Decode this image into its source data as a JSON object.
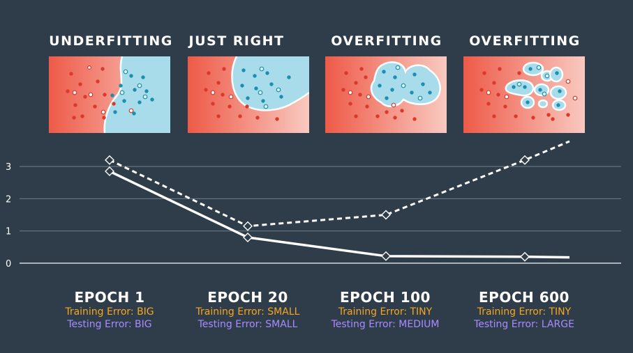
{
  "panels": [
    {
      "title": "UNDERFITTING",
      "scene": "underfit"
    },
    {
      "title": "JUST RIGHT",
      "scene": "right"
    },
    {
      "title": "OVERFITTING",
      "scene": "over1"
    },
    {
      "title": "OVERFITTING",
      "scene": "over2"
    }
  ],
  "epochs": [
    {
      "title": "EPOCH 1",
      "training_label": "Training Error: BIG",
      "testing_label": "Testing Error: BIG"
    },
    {
      "title": "EPOCH 20",
      "training_label": "Training Error: SMALL",
      "testing_label": "Testing Error: SMALL"
    },
    {
      "title": "EPOCH 100",
      "training_label": "Training Error: TINY",
      "testing_label": "Testing Error: MEDIUM"
    },
    {
      "title": "EPOCH 600",
      "training_label": "Training Error: TINY",
      "testing_label": "Testing Error: LARGE"
    }
  ],
  "colors": {
    "background": "#2e3d49",
    "training_text": "#f5a623",
    "testing_text": "#a98bff",
    "red_region": "#ee6a5a",
    "blue_region": "#a8dcea",
    "red_point": "#d93a2b",
    "blue_point": "#1c8fb0"
  },
  "chart_data": {
    "type": "line",
    "x": [
      1,
      2,
      3,
      4
    ],
    "series": [
      {
        "style": "solid",
        "values": [
          2.85,
          0.8,
          0.22,
          0.2
        ],
        "end_value": 0.18
      },
      {
        "style": "dashed",
        "values": [
          3.2,
          1.15,
          1.5,
          3.2
        ],
        "end_value": 3.78
      }
    ],
    "yticks": [
      0,
      1,
      2,
      3
    ],
    "ylim": [
      0,
      3.9
    ],
    "grid": true
  }
}
